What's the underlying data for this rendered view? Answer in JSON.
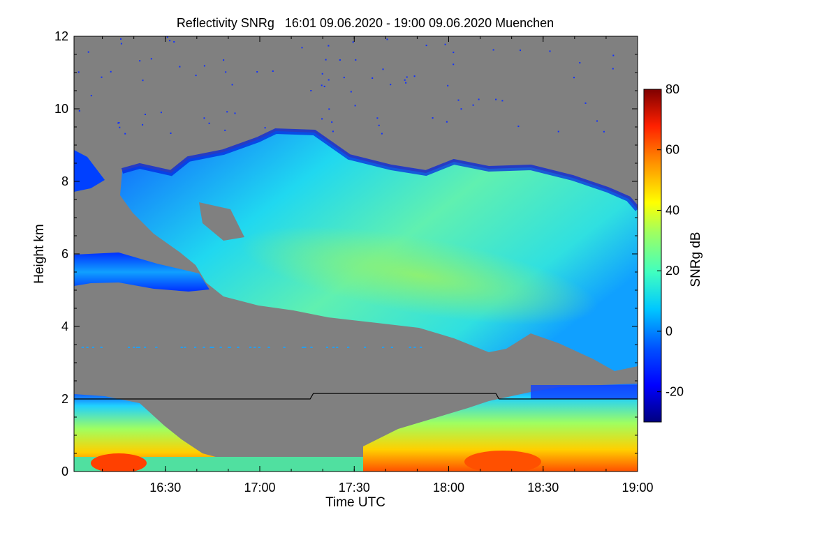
{
  "chart_data": {
    "type": "heatmap",
    "title": "Reflectivity SNRg   16:01 09.06.2020 - 19:00 09.06.2020 Muenchen",
    "xlabel": "Time UTC",
    "ylabel": "Height km",
    "colorbar_label": "SNRg dB",
    "x_range": [
      "16:01",
      "19:00"
    ],
    "ylim": [
      0,
      12
    ],
    "clim": [
      -30,
      80
    ],
    "x_ticks": [
      "16:30",
      "17:00",
      "17:30",
      "18:00",
      "18:30",
      "19:00"
    ],
    "y_ticks": [
      "0",
      "2",
      "4",
      "6",
      "8",
      "10",
      "12"
    ],
    "colorbar_ticks": [
      "-20",
      "0",
      "20",
      "40",
      "60",
      "80"
    ],
    "colormap": "jet",
    "background_color": "#808080",
    "line_series": {
      "name": "",
      "color": "#000000",
      "points": [
        {
          "time": "16:01",
          "height_km": 2.0
        },
        {
          "time": "17:16",
          "height_km": 2.0
        },
        {
          "time": "17:17",
          "height_km": 2.15
        },
        {
          "time": "18:15",
          "height_km": 2.15
        },
        {
          "time": "18:16",
          "height_km": 2.0
        },
        {
          "time": "19:00",
          "height_km": 2.0
        }
      ]
    }
  }
}
